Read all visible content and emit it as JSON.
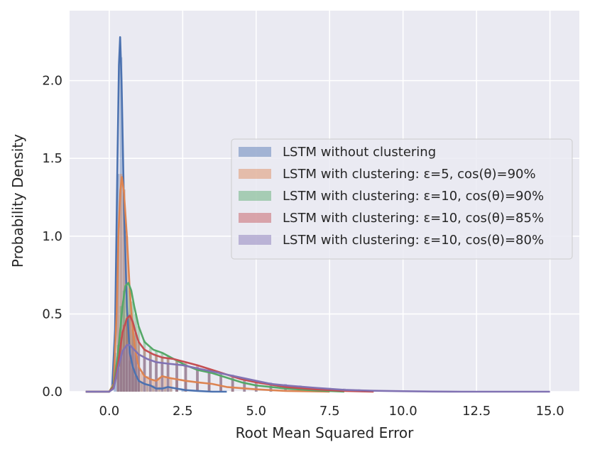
{
  "chart_data": {
    "type": "histogram-kde",
    "title": "",
    "xlabel": "Root Mean Squared Error",
    "ylabel": "Probability Density",
    "xlim": [
      -1.35,
      16.0
    ],
    "ylim": [
      0,
      2.45
    ],
    "xticks": [
      0.0,
      2.5,
      5.0,
      7.5,
      10.0,
      12.5,
      15.0
    ],
    "xtick_labels": [
      "0.0",
      "2.5",
      "5.0",
      "7.5",
      "10.0",
      "12.5",
      "15.0"
    ],
    "yticks": [
      0.0,
      0.5,
      1.0,
      1.5,
      2.0
    ],
    "ytick_labels": [
      "0.0",
      "0.5",
      "1.0",
      "1.5",
      "2.0"
    ],
    "grid": true,
    "legend_position": "center-right",
    "series": [
      {
        "name": "LSTM without clustering",
        "color": "#4c72b0",
        "kde": [
          [
            -0.8,
            0
          ],
          [
            0.0,
            0.0
          ],
          [
            0.1,
            0.03
          ],
          [
            0.2,
            0.4
          ],
          [
            0.28,
            1.5
          ],
          [
            0.33,
            2.1
          ],
          [
            0.37,
            2.28
          ],
          [
            0.42,
            2.0
          ],
          [
            0.5,
            1.2
          ],
          [
            0.6,
            0.55
          ],
          [
            0.7,
            0.25
          ],
          [
            0.8,
            0.16
          ],
          [
            0.9,
            0.11
          ],
          [
            1.0,
            0.07
          ],
          [
            1.2,
            0.05
          ],
          [
            1.4,
            0.04
          ],
          [
            1.6,
            0.02
          ],
          [
            1.8,
            0.02
          ],
          [
            2.0,
            0.03
          ],
          [
            2.3,
            0.02
          ],
          [
            2.6,
            0.01
          ],
          [
            3.0,
            0.005
          ],
          [
            3.5,
            0.0
          ],
          [
            4.0,
            0.0
          ]
        ],
        "hist": [
          [
            0.2,
            0.25
          ],
          [
            0.3,
            1.4
          ],
          [
            0.4,
            2.15
          ],
          [
            0.5,
            1.3
          ],
          [
            0.6,
            0.45
          ],
          [
            0.7,
            0.2
          ],
          [
            0.8,
            0.15
          ],
          [
            0.9,
            0.1
          ],
          [
            1.0,
            0.08
          ],
          [
            1.1,
            0.06
          ],
          [
            1.3,
            0.05
          ],
          [
            1.5,
            0.04
          ],
          [
            1.7,
            0.03
          ],
          [
            1.9,
            0.03
          ],
          [
            2.1,
            0.02
          ],
          [
            2.3,
            0.02
          ],
          [
            2.5,
            0.01
          ]
        ]
      },
      {
        "name": "LSTM with clustering: ε=5, cos(θ)=90%",
        "color": "#dd8452",
        "kde": [
          [
            -0.8,
            0
          ],
          [
            0.0,
            0.0
          ],
          [
            0.15,
            0.05
          ],
          [
            0.25,
            0.5
          ],
          [
            0.32,
            1.05
          ],
          [
            0.38,
            1.3
          ],
          [
            0.43,
            1.38
          ],
          [
            0.5,
            1.28
          ],
          [
            0.6,
            1.0
          ],
          [
            0.7,
            0.65
          ],
          [
            0.8,
            0.4
          ],
          [
            0.9,
            0.25
          ],
          [
            1.0,
            0.16
          ],
          [
            1.2,
            0.1
          ],
          [
            1.4,
            0.08
          ],
          [
            1.6,
            0.07
          ],
          [
            1.8,
            0.1
          ],
          [
            2.0,
            0.09
          ],
          [
            2.3,
            0.08
          ],
          [
            2.6,
            0.07
          ],
          [
            3.0,
            0.06
          ],
          [
            3.5,
            0.05
          ],
          [
            4.0,
            0.03
          ],
          [
            5.0,
            0.015
          ],
          [
            6.0,
            0.005
          ],
          [
            7.5,
            0.0
          ]
        ],
        "hist": [
          [
            0.3,
            1.0
          ],
          [
            0.4,
            1.4
          ],
          [
            0.5,
            1.3
          ],
          [
            0.6,
            1.0
          ],
          [
            0.7,
            0.65
          ],
          [
            0.8,
            0.4
          ],
          [
            0.9,
            0.25
          ],
          [
            1.0,
            0.16
          ],
          [
            1.1,
            0.12
          ],
          [
            1.3,
            0.1
          ],
          [
            1.5,
            0.08
          ],
          [
            1.7,
            0.09
          ],
          [
            1.9,
            0.1
          ],
          [
            2.1,
            0.09
          ],
          [
            2.3,
            0.08
          ],
          [
            2.6,
            0.07
          ],
          [
            3.0,
            0.06
          ],
          [
            3.4,
            0.05
          ],
          [
            3.8,
            0.04
          ],
          [
            4.2,
            0.03
          ]
        ]
      },
      {
        "name": "LSTM with clustering: ε=10, cos(θ)=90%",
        "color": "#55a868",
        "kde": [
          [
            -0.8,
            0
          ],
          [
            0.0,
            0.0
          ],
          [
            0.15,
            0.04
          ],
          [
            0.3,
            0.25
          ],
          [
            0.45,
            0.55
          ],
          [
            0.55,
            0.68
          ],
          [
            0.65,
            0.7
          ],
          [
            0.75,
            0.65
          ],
          [
            0.85,
            0.55
          ],
          [
            1.0,
            0.42
          ],
          [
            1.2,
            0.32
          ],
          [
            1.5,
            0.27
          ],
          [
            1.8,
            0.25
          ],
          [
            2.2,
            0.21
          ],
          [
            2.6,
            0.17
          ],
          [
            3.0,
            0.14
          ],
          [
            3.5,
            0.12
          ],
          [
            4.0,
            0.09
          ],
          [
            4.5,
            0.06
          ],
          [
            5.0,
            0.04
          ],
          [
            6.0,
            0.02
          ],
          [
            7.0,
            0.008
          ],
          [
            8.0,
            0.0
          ]
        ],
        "hist": [
          [
            0.3,
            0.3
          ],
          [
            0.4,
            0.55
          ],
          [
            0.5,
            0.65
          ],
          [
            0.6,
            0.7
          ],
          [
            0.7,
            0.67
          ],
          [
            0.8,
            0.58
          ],
          [
            0.9,
            0.5
          ],
          [
            1.0,
            0.42
          ],
          [
            1.2,
            0.33
          ],
          [
            1.4,
            0.28
          ],
          [
            1.6,
            0.26
          ],
          [
            1.8,
            0.25
          ],
          [
            2.0,
            0.23
          ],
          [
            2.3,
            0.2
          ],
          [
            2.6,
            0.17
          ],
          [
            3.0,
            0.14
          ],
          [
            3.4,
            0.12
          ],
          [
            3.8,
            0.1
          ],
          [
            4.2,
            0.08
          ],
          [
            4.6,
            0.06
          ],
          [
            5.0,
            0.04
          ],
          [
            5.5,
            0.03
          ]
        ]
      },
      {
        "name": "LSTM with clustering: ε=10, cos(θ)=85%",
        "color": "#c44e52",
        "kde": [
          [
            -0.8,
            0
          ],
          [
            0.0,
            0.0
          ],
          [
            0.15,
            0.03
          ],
          [
            0.3,
            0.18
          ],
          [
            0.45,
            0.38
          ],
          [
            0.6,
            0.47
          ],
          [
            0.7,
            0.49
          ],
          [
            0.8,
            0.45
          ],
          [
            0.9,
            0.38
          ],
          [
            1.0,
            0.32
          ],
          [
            1.2,
            0.27
          ],
          [
            1.5,
            0.24
          ],
          [
            1.8,
            0.22
          ],
          [
            2.2,
            0.21
          ],
          [
            2.6,
            0.19
          ],
          [
            3.0,
            0.17
          ],
          [
            3.5,
            0.14
          ],
          [
            4.0,
            0.11
          ],
          [
            4.5,
            0.08
          ],
          [
            5.0,
            0.06
          ],
          [
            6.0,
            0.03
          ],
          [
            7.0,
            0.015
          ],
          [
            8.0,
            0.005
          ],
          [
            9.0,
            0.0
          ]
        ],
        "hist": [
          [
            0.3,
            0.2
          ],
          [
            0.4,
            0.35
          ],
          [
            0.5,
            0.43
          ],
          [
            0.6,
            0.47
          ],
          [
            0.7,
            0.48
          ],
          [
            0.8,
            0.44
          ],
          [
            0.9,
            0.38
          ],
          [
            1.0,
            0.32
          ],
          [
            1.2,
            0.27
          ],
          [
            1.4,
            0.25
          ],
          [
            1.6,
            0.23
          ],
          [
            1.8,
            0.22
          ],
          [
            2.0,
            0.21
          ],
          [
            2.3,
            0.2
          ],
          [
            2.6,
            0.19
          ],
          [
            3.0,
            0.17
          ],
          [
            3.4,
            0.15
          ],
          [
            3.8,
            0.12
          ],
          [
            4.2,
            0.1
          ],
          [
            4.6,
            0.08
          ],
          [
            5.0,
            0.06
          ],
          [
            5.5,
            0.05
          ],
          [
            6.0,
            0.03
          ]
        ]
      },
      {
        "name": "LSTM with clustering: ε=10, cos(θ)=80%",
        "color": "#8172b3",
        "kde": [
          [
            -0.8,
            0
          ],
          [
            0.0,
            0.0
          ],
          [
            0.15,
            0.02
          ],
          [
            0.3,
            0.15
          ],
          [
            0.45,
            0.26
          ],
          [
            0.6,
            0.3
          ],
          [
            0.7,
            0.3
          ],
          [
            0.85,
            0.27
          ],
          [
            1.0,
            0.24
          ],
          [
            1.3,
            0.21
          ],
          [
            1.6,
            0.19
          ],
          [
            2.0,
            0.18
          ],
          [
            2.5,
            0.17
          ],
          [
            3.0,
            0.15
          ],
          [
            3.5,
            0.13
          ],
          [
            4.0,
            0.11
          ],
          [
            4.5,
            0.09
          ],
          [
            5.0,
            0.07
          ],
          [
            5.5,
            0.05
          ],
          [
            6.0,
            0.04
          ],
          [
            7.0,
            0.025
          ],
          [
            8.0,
            0.012
          ],
          [
            9.0,
            0.006
          ],
          [
            10.0,
            0.003
          ],
          [
            11.0,
            0.001
          ],
          [
            12.0,
            0.0
          ],
          [
            15.0,
            0.0
          ]
        ],
        "hist": [
          [
            0.3,
            0.15
          ],
          [
            0.4,
            0.25
          ],
          [
            0.5,
            0.28
          ],
          [
            0.6,
            0.3
          ],
          [
            0.7,
            0.3
          ],
          [
            0.8,
            0.28
          ],
          [
            0.9,
            0.26
          ],
          [
            1.0,
            0.24
          ],
          [
            1.2,
            0.22
          ],
          [
            1.4,
            0.2
          ],
          [
            1.6,
            0.19
          ],
          [
            1.8,
            0.19
          ],
          [
            2.0,
            0.18
          ],
          [
            2.3,
            0.18
          ],
          [
            2.6,
            0.17
          ],
          [
            3.0,
            0.16
          ],
          [
            3.4,
            0.14
          ],
          [
            3.8,
            0.12
          ],
          [
            4.2,
            0.11
          ],
          [
            4.6,
            0.09
          ],
          [
            5.0,
            0.07
          ],
          [
            5.5,
            0.06
          ],
          [
            6.0,
            0.05
          ],
          [
            6.5,
            0.04
          ],
          [
            7.0,
            0.03
          ],
          [
            7.5,
            0.025
          ],
          [
            8.0,
            0.02
          ],
          [
            8.5,
            0.015
          ],
          [
            9.0,
            0.01
          ],
          [
            9.5,
            0.008
          ],
          [
            10.0,
            0.005
          ]
        ]
      }
    ]
  }
}
